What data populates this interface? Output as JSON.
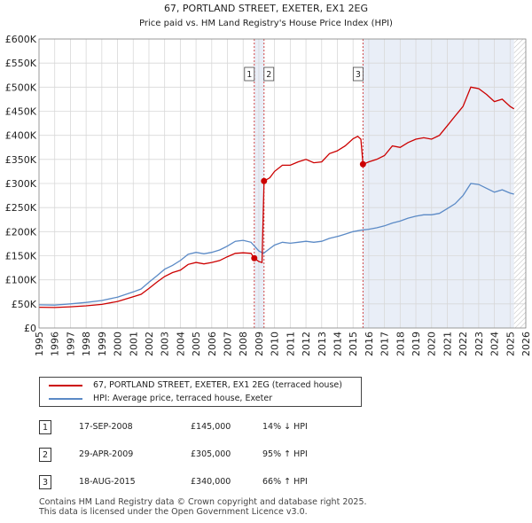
{
  "chart_data": {
    "type": "line",
    "title": "67, PORTLAND STREET, EXETER, EX1 2EG",
    "subtitle": "Price paid vs. HM Land Registry's House Price Index (HPI)",
    "xlim": [
      1995,
      2026
    ],
    "ylim": [
      0,
      600000
    ],
    "y_ticks": [
      {
        "value": 0,
        "label": "£0"
      },
      {
        "value": 50000,
        "label": "£50K"
      },
      {
        "value": 100000,
        "label": "£100K"
      },
      {
        "value": 150000,
        "label": "£150K"
      },
      {
        "value": 200000,
        "label": "£200K"
      },
      {
        "value": 250000,
        "label": "£250K"
      },
      {
        "value": 300000,
        "label": "£300K"
      },
      {
        "value": 350000,
        "label": "£350K"
      },
      {
        "value": 400000,
        "label": "£400K"
      },
      {
        "value": 450000,
        "label": "£450K"
      },
      {
        "value": 500000,
        "label": "£500K"
      },
      {
        "value": 550000,
        "label": "£550K"
      },
      {
        "value": 600000,
        "label": "£600K"
      }
    ],
    "x_ticks": [
      "1995",
      "1996",
      "1997",
      "1998",
      "1999",
      "2000",
      "2001",
      "2002",
      "2003",
      "2004",
      "2005",
      "2006",
      "2007",
      "2008",
      "2009",
      "2010",
      "2011",
      "2012",
      "2013",
      "2014",
      "2015",
      "2016",
      "2017",
      "2018",
      "2019",
      "2020",
      "2021",
      "2022",
      "2023",
      "2024",
      "2025",
      "2026"
    ],
    "grid": true,
    "series": [
      {
        "name": "67, PORTLAND STREET, EXETER, EX1 2EG (terraced house)",
        "color": "#cc0000",
        "points": [
          [
            1995.0,
            43000
          ],
          [
            1996.0,
            42500
          ],
          [
            1997.0,
            44000
          ],
          [
            1998.0,
            46000
          ],
          [
            1999.0,
            49000
          ],
          [
            2000.0,
            55000
          ],
          [
            2001.0,
            65000
          ],
          [
            2001.5,
            70000
          ],
          [
            2002.0,
            82000
          ],
          [
            2002.5,
            95000
          ],
          [
            2003.0,
            107000
          ],
          [
            2003.5,
            115000
          ],
          [
            2004.0,
            120000
          ],
          [
            2004.5,
            132000
          ],
          [
            2005.0,
            136000
          ],
          [
            2005.5,
            133000
          ],
          [
            2006.0,
            136000
          ],
          [
            2006.5,
            140000
          ],
          [
            2007.0,
            148000
          ],
          [
            2007.5,
            155000
          ],
          [
            2008.0,
            156000
          ],
          [
            2008.5,
            155000
          ],
          [
            2008.71,
            145000
          ],
          [
            2009.0,
            138000
          ],
          [
            2009.2,
            136000
          ],
          [
            2009.33,
            305000
          ],
          [
            2009.7,
            312000
          ],
          [
            2010.0,
            325000
          ],
          [
            2010.5,
            338000
          ],
          [
            2011.0,
            338000
          ],
          [
            2011.5,
            345000
          ],
          [
            2012.0,
            350000
          ],
          [
            2012.5,
            343000
          ],
          [
            2013.0,
            345000
          ],
          [
            2013.5,
            362000
          ],
          [
            2014.0,
            368000
          ],
          [
            2014.5,
            378000
          ],
          [
            2015.0,
            393000
          ],
          [
            2015.3,
            398000
          ],
          [
            2015.5,
            392000
          ],
          [
            2015.63,
            340000
          ],
          [
            2016.0,
            345000
          ],
          [
            2016.5,
            350000
          ],
          [
            2017.0,
            358000
          ],
          [
            2017.5,
            378000
          ],
          [
            2018.0,
            375000
          ],
          [
            2018.5,
            385000
          ],
          [
            2019.0,
            392000
          ],
          [
            2019.5,
            395000
          ],
          [
            2020.0,
            392000
          ],
          [
            2020.5,
            400000
          ],
          [
            2021.0,
            420000
          ],
          [
            2021.5,
            440000
          ],
          [
            2022.0,
            460000
          ],
          [
            2022.5,
            500000
          ],
          [
            2023.0,
            497000
          ],
          [
            2023.5,
            485000
          ],
          [
            2024.0,
            470000
          ],
          [
            2024.5,
            475000
          ],
          [
            2025.0,
            460000
          ],
          [
            2025.25,
            455000
          ]
        ]
      },
      {
        "name": "HPI: Average price, terraced house, Exeter",
        "color": "#5b8ac6",
        "points": [
          [
            1995.0,
            48000
          ],
          [
            1996.0,
            47500
          ],
          [
            1997.0,
            50000
          ],
          [
            1998.0,
            53000
          ],
          [
            1999.0,
            57000
          ],
          [
            2000.0,
            64000
          ],
          [
            2001.0,
            75000
          ],
          [
            2001.5,
            81000
          ],
          [
            2002.0,
            95000
          ],
          [
            2002.5,
            108000
          ],
          [
            2003.0,
            122000
          ],
          [
            2003.5,
            130000
          ],
          [
            2004.0,
            140000
          ],
          [
            2004.5,
            153000
          ],
          [
            2005.0,
            157000
          ],
          [
            2005.5,
            154000
          ],
          [
            2006.0,
            157000
          ],
          [
            2006.5,
            162000
          ],
          [
            2007.0,
            170000
          ],
          [
            2007.5,
            180000
          ],
          [
            2008.0,
            182000
          ],
          [
            2008.5,
            178000
          ],
          [
            2009.0,
            160000
          ],
          [
            2009.3,
            155000
          ],
          [
            2009.7,
            165000
          ],
          [
            2010.0,
            172000
          ],
          [
            2010.5,
            178000
          ],
          [
            2011.0,
            176000
          ],
          [
            2011.5,
            178000
          ],
          [
            2012.0,
            180000
          ],
          [
            2012.5,
            178000
          ],
          [
            2013.0,
            180000
          ],
          [
            2013.5,
            186000
          ],
          [
            2014.0,
            190000
          ],
          [
            2014.5,
            195000
          ],
          [
            2015.0,
            200000
          ],
          [
            2015.5,
            203000
          ],
          [
            2016.0,
            205000
          ],
          [
            2016.5,
            208000
          ],
          [
            2017.0,
            212000
          ],
          [
            2017.5,
            218000
          ],
          [
            2018.0,
            222000
          ],
          [
            2018.5,
            228000
          ],
          [
            2019.0,
            232000
          ],
          [
            2019.5,
            235000
          ],
          [
            2020.0,
            235000
          ],
          [
            2020.5,
            238000
          ],
          [
            2021.0,
            248000
          ],
          [
            2021.5,
            258000
          ],
          [
            2022.0,
            275000
          ],
          [
            2022.5,
            300000
          ],
          [
            2023.0,
            298000
          ],
          [
            2023.5,
            290000
          ],
          [
            2024.0,
            282000
          ],
          [
            2024.5,
            287000
          ],
          [
            2025.0,
            280000
          ],
          [
            2025.25,
            278000
          ]
        ]
      }
    ],
    "sales": [
      {
        "n": "1",
        "year": 2008.71,
        "price": 145000
      },
      {
        "n": "2",
        "year": 2009.33,
        "price": 305000
      },
      {
        "n": "3",
        "year": 2015.63,
        "price": 340000
      }
    ],
    "shade_ranges": [
      [
        2008.71,
        2009.33
      ],
      [
        2015.63,
        2025.25
      ]
    ],
    "hatch_from": 2025.25
  },
  "legend": {
    "items": [
      {
        "label": "67, PORTLAND STREET, EXETER, EX1 2EG (terraced house)",
        "color": "#cc0000"
      },
      {
        "label": "HPI: Average price, terraced house, Exeter",
        "color": "#5b8ac6"
      }
    ]
  },
  "sales_table": [
    {
      "n": "1",
      "date": "17-SEP-2008",
      "price": "£145,000",
      "hpi": "14% ↓ HPI"
    },
    {
      "n": "2",
      "date": "29-APR-2009",
      "price": "£305,000",
      "hpi": "95% ↑ HPI"
    },
    {
      "n": "3",
      "date": "18-AUG-2015",
      "price": "£340,000",
      "hpi": "66% ↑ HPI"
    }
  ],
  "footer": {
    "line1": "Contains HM Land Registry data © Crown copyright and database right 2025.",
    "line2": "This data is licensed under the Open Government Licence v3.0."
  }
}
